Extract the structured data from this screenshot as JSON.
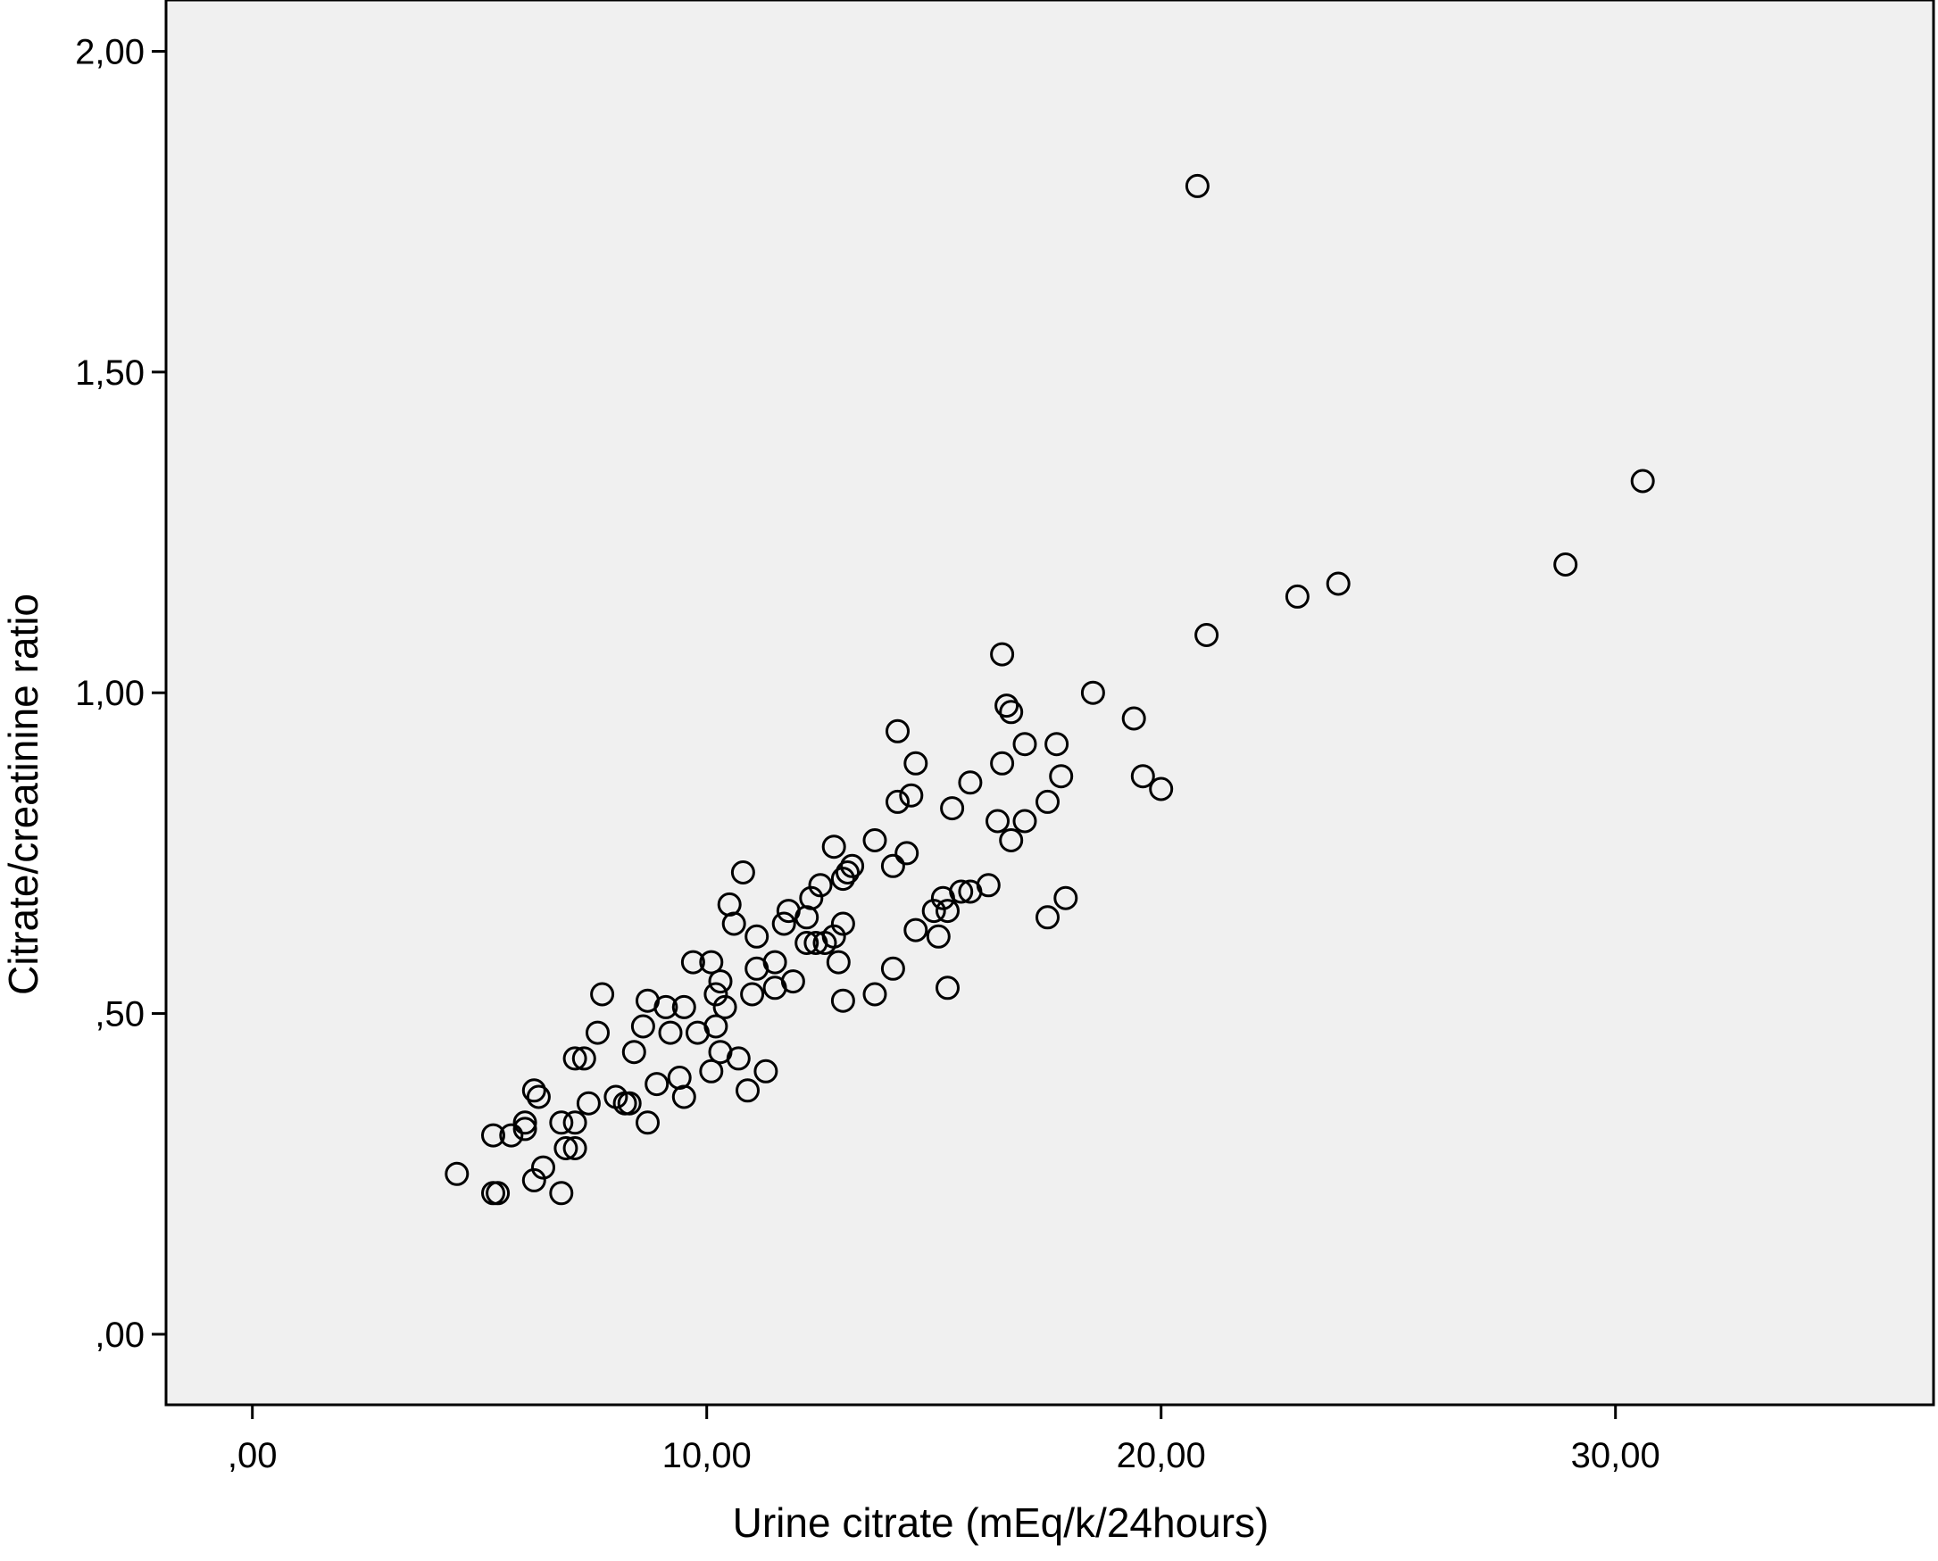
{
  "chart_data": {
    "type": "scatter",
    "xlabel": "Urine citrate (mEq/k/24hours)",
    "ylabel": "Citrate/creatinine ratio",
    "xlim": [
      -1.9,
      37.0
    ],
    "ylim": [
      -0.11,
      2.08
    ],
    "x_ticks": [
      {
        "value": 0,
        "label": ",00"
      },
      {
        "value": 10,
        "label": "10,00"
      },
      {
        "value": 20,
        "label": "20,00"
      },
      {
        "value": 30,
        "label": "30,00"
      }
    ],
    "y_ticks": [
      {
        "value": 0,
        "label": ",00"
      },
      {
        "value": 0.5,
        "label": ",50"
      },
      {
        "value": 1.0,
        "label": "1,00"
      },
      {
        "value": 1.5,
        "label": "1,50"
      },
      {
        "value": 2.0,
        "label": "2,00"
      }
    ],
    "grid": false,
    "marker": "open-circle",
    "colors": {
      "plot_background": "#f0f0f0",
      "marker_stroke": "#000000",
      "axis": "#000000"
    },
    "points": [
      [
        4.5,
        0.25
      ],
      [
        5.3,
        0.22
      ],
      [
        5.4,
        0.22
      ],
      [
        5.3,
        0.31
      ],
      [
        5.7,
        0.31
      ],
      [
        6.0,
        0.32
      ],
      [
        6.0,
        0.33
      ],
      [
        6.2,
        0.38
      ],
      [
        6.3,
        0.37
      ],
      [
        6.2,
        0.24
      ],
      [
        6.4,
        0.26
      ],
      [
        6.8,
        0.33
      ],
      [
        6.8,
        0.22
      ],
      [
        6.9,
        0.29
      ],
      [
        7.1,
        0.29
      ],
      [
        7.1,
        0.33
      ],
      [
        7.1,
        0.43
      ],
      [
        7.3,
        0.43
      ],
      [
        7.4,
        0.36
      ],
      [
        7.6,
        0.47
      ],
      [
        7.7,
        0.53
      ],
      [
        8.0,
        0.37
      ],
      [
        8.2,
        0.36
      ],
      [
        8.3,
        0.36
      ],
      [
        8.4,
        0.44
      ],
      [
        8.6,
        0.48
      ],
      [
        8.7,
        0.52
      ],
      [
        8.7,
        0.33
      ],
      [
        8.9,
        0.39
      ],
      [
        9.1,
        0.51
      ],
      [
        9.2,
        0.47
      ],
      [
        9.4,
        0.4
      ],
      [
        9.5,
        0.37
      ],
      [
        9.5,
        0.51
      ],
      [
        9.7,
        0.58
      ],
      [
        9.8,
        0.47
      ],
      [
        10.1,
        0.58
      ],
      [
        10.1,
        0.41
      ],
      [
        10.2,
        0.48
      ],
      [
        10.2,
        0.53
      ],
      [
        10.3,
        0.44
      ],
      [
        10.3,
        0.55
      ],
      [
        10.4,
        0.51
      ],
      [
        10.5,
        0.67
      ],
      [
        10.6,
        0.64
      ],
      [
        10.7,
        0.43
      ],
      [
        10.8,
        0.72
      ],
      [
        10.9,
        0.38
      ],
      [
        11.0,
        0.53
      ],
      [
        11.1,
        0.57
      ],
      [
        11.1,
        0.62
      ],
      [
        11.3,
        0.41
      ],
      [
        11.5,
        0.58
      ],
      [
        11.5,
        0.54
      ],
      [
        11.7,
        0.64
      ],
      [
        11.8,
        0.66
      ],
      [
        11.9,
        0.55
      ],
      [
        12.2,
        0.65
      ],
      [
        12.2,
        0.61
      ],
      [
        12.3,
        0.68
      ],
      [
        12.4,
        0.61
      ],
      [
        12.5,
        0.7
      ],
      [
        12.6,
        0.61
      ],
      [
        12.8,
        0.62
      ],
      [
        12.8,
        0.76
      ],
      [
        12.9,
        0.58
      ],
      [
        13.0,
        0.52
      ],
      [
        13.0,
        0.64
      ],
      [
        13.0,
        0.71
      ],
      [
        13.1,
        0.72
      ],
      [
        13.2,
        0.73
      ],
      [
        13.7,
        0.53
      ],
      [
        13.7,
        0.77
      ],
      [
        14.1,
        0.57
      ],
      [
        14.1,
        0.73
      ],
      [
        14.2,
        0.94
      ],
      [
        14.2,
        0.83
      ],
      [
        14.4,
        0.75
      ],
      [
        14.5,
        0.84
      ],
      [
        14.6,
        0.89
      ],
      [
        14.6,
        0.63
      ],
      [
        15.0,
        0.66
      ],
      [
        15.1,
        0.62
      ],
      [
        15.2,
        0.68
      ],
      [
        15.3,
        0.66
      ],
      [
        15.3,
        0.54
      ],
      [
        15.4,
        0.82
      ],
      [
        15.6,
        0.69
      ],
      [
        15.8,
        0.69
      ],
      [
        15.8,
        0.86
      ],
      [
        16.2,
        0.7
      ],
      [
        16.4,
        0.8
      ],
      [
        16.5,
        1.06
      ],
      [
        16.5,
        0.89
      ],
      [
        16.6,
        0.98
      ],
      [
        16.7,
        0.77
      ],
      [
        16.7,
        0.97
      ],
      [
        17.0,
        0.8
      ],
      [
        17.0,
        0.92
      ],
      [
        17.5,
        0.65
      ],
      [
        17.5,
        0.83
      ],
      [
        17.7,
        0.92
      ],
      [
        17.8,
        0.87
      ],
      [
        17.9,
        0.68
      ],
      [
        18.5,
        1.0
      ],
      [
        19.4,
        0.96
      ],
      [
        19.6,
        0.87
      ],
      [
        20.0,
        0.85
      ],
      [
        20.8,
        1.79
      ],
      [
        21.0,
        1.09
      ],
      [
        23.0,
        1.15
      ],
      [
        23.9,
        1.17
      ],
      [
        28.9,
        1.2
      ],
      [
        30.6,
        1.33
      ]
    ]
  }
}
